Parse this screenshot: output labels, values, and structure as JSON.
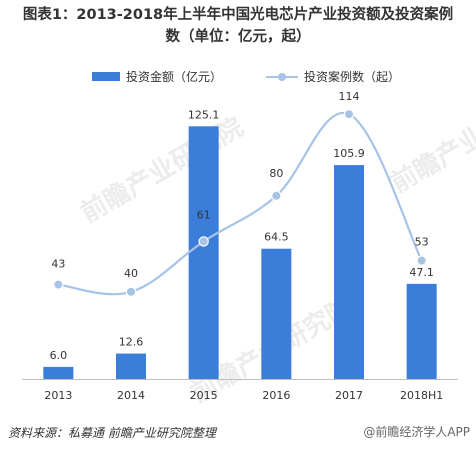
{
  "title_line1": "图表1：2013-2018年上半年中国光电芯片产业投资额及投资案例",
  "title_line2": "数（单位：亿元，起）",
  "footer": "资料来源：私募通   前瞻产业研究院整理",
  "source_mark": "@前瞻经济学人APP",
  "watermark": "前瞻产业研究院",
  "colors": {
    "bar": "#3a7ed9",
    "line": "#a7c3e6",
    "text": "#333333"
  },
  "chart_data": {
    "type": "bar+line",
    "categories": [
      "2013",
      "2014",
      "2015",
      "2016",
      "2017",
      "2018H1"
    ],
    "series": [
      {
        "name": "投资金额（亿元）",
        "type": "bar",
        "values": [
          6.0,
          12.6,
          125.1,
          64.5,
          105.9,
          47.1
        ],
        "labels": [
          "6.0",
          "12.6",
          "125.1",
          "64.5",
          "105.9",
          "47.1"
        ]
      },
      {
        "name": "投资案例数（起）",
        "type": "line",
        "values": [
          43,
          40,
          61,
          80,
          114,
          53
        ],
        "labels": [
          "43",
          "40",
          "61",
          "80",
          "114",
          "53"
        ]
      }
    ],
    "legend_position": "top",
    "grid": false
  }
}
